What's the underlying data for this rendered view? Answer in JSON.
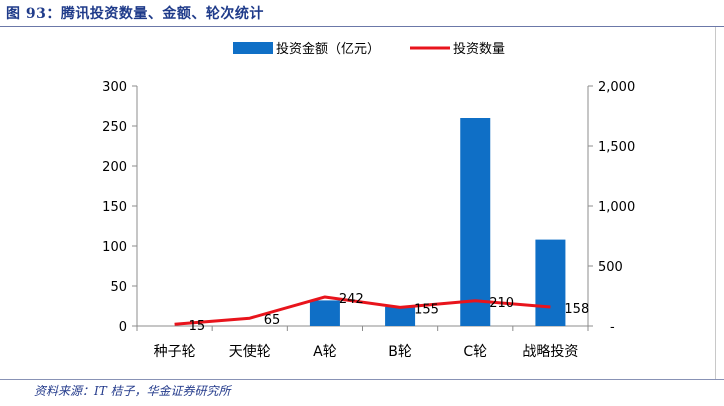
{
  "figure": {
    "title": "图 93：腾讯投资数量、金额、轮次统计",
    "source": "资料来源：IT 桔子，华金证券研究所"
  },
  "chart_data": {
    "type": "bar+line",
    "categories": [
      "种子轮",
      "天使轮",
      "A轮",
      "B轮",
      "C轮",
      "战略投资"
    ],
    "series": [
      {
        "name": "投资金额（亿元）",
        "type": "bar",
        "axis": "left",
        "color": "#0f6fc6",
        "values": [
          0,
          0,
          32,
          24,
          260,
          108
        ]
      },
      {
        "name": "投资数量",
        "type": "line",
        "axis": "right",
        "color": "#e8141c",
        "values": [
          15,
          65,
          242,
          155,
          210,
          158
        ],
        "data_labels": [
          "15",
          "65",
          "242",
          "155",
          "210",
          "158"
        ]
      }
    ],
    "y_left": {
      "min": 0,
      "max": 300,
      "ticks": [
        "0",
        "50",
        "100",
        "150",
        "200",
        "250",
        "300"
      ]
    },
    "y_right": {
      "min": 0,
      "max": 2000,
      "ticks": [
        "-",
        "500",
        "1,000",
        "1,500",
        "2,000"
      ]
    },
    "legend": "top-center",
    "grid": false
  }
}
